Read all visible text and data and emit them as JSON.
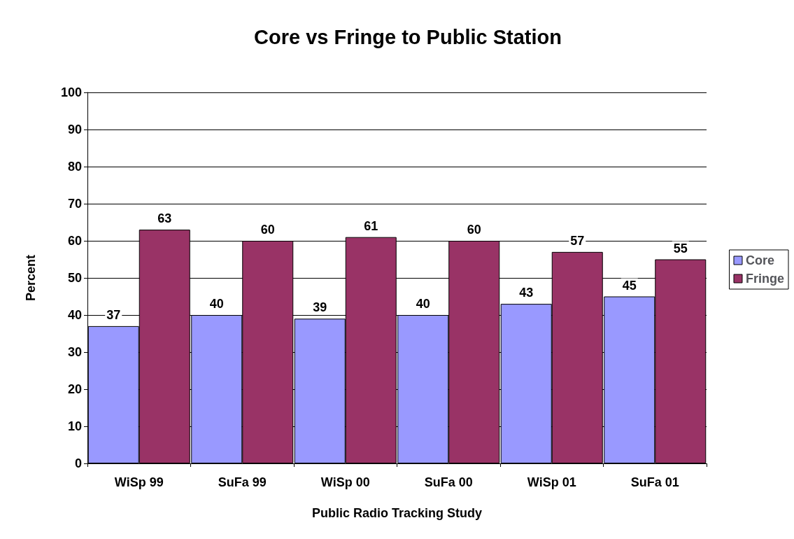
{
  "chart_data": {
    "type": "bar",
    "title": "Core vs Fringe to Public Station",
    "xlabel": "Public Radio Tracking Study",
    "ylabel": "Percent",
    "categories": [
      "WiSp 99",
      "SuFa 99",
      "WiSp 00",
      "SuFa 00",
      "WiSp 01",
      "SuFa 01"
    ],
    "series": [
      {
        "name": "Core",
        "color": "#9999ff",
        "values": [
          37,
          40,
          39,
          40,
          43,
          45
        ]
      },
      {
        "name": "Fringe",
        "color": "#993366",
        "values": [
          63,
          60,
          61,
          60,
          57,
          55
        ]
      }
    ],
    "ylim": [
      0,
      100
    ],
    "yticks": [
      0,
      10,
      20,
      30,
      40,
      50,
      60,
      70,
      80,
      90,
      100
    ],
    "grid": "y",
    "legend": "right",
    "data_labels": true
  }
}
